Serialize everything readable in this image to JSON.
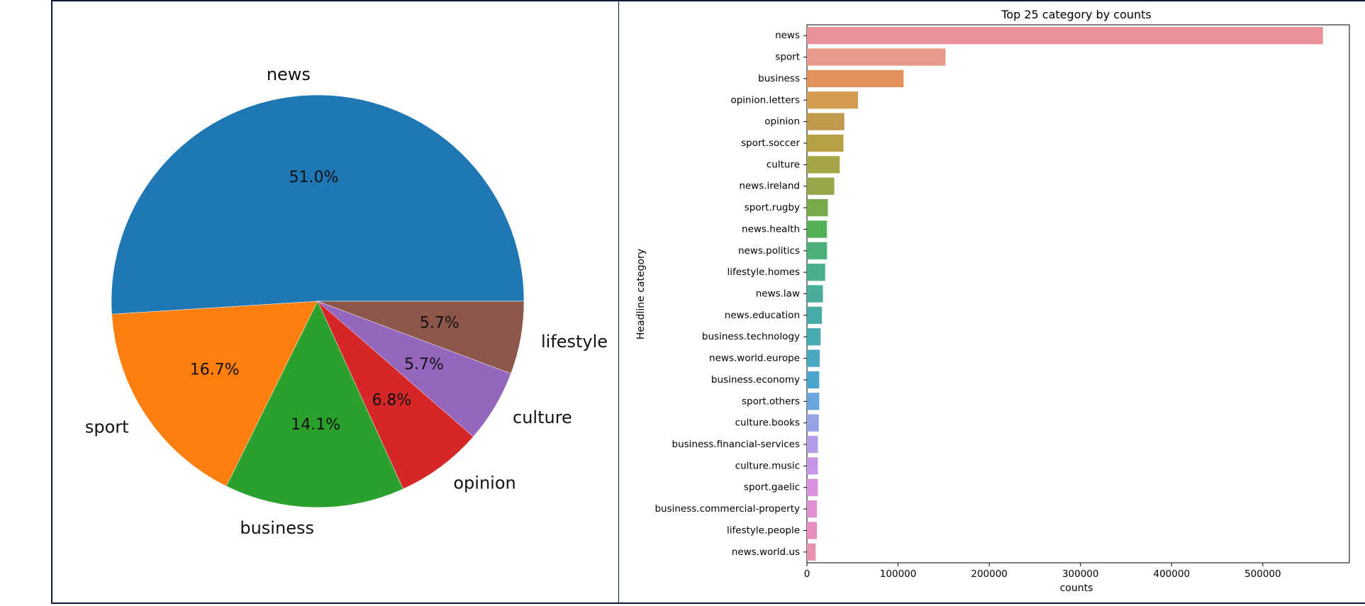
{
  "chart_data": [
    {
      "type": "pie",
      "title": "",
      "slices": [
        {
          "label": "news",
          "value": 51.0,
          "pct_text": "51.0%",
          "color": "#1f77b4"
        },
        {
          "label": "sport",
          "value": 16.7,
          "pct_text": "16.7%",
          "color": "#ff7f0e"
        },
        {
          "label": "business",
          "value": 14.1,
          "pct_text": "14.1%",
          "color": "#2ca02c"
        },
        {
          "label": "opinion",
          "value": 6.8,
          "pct_text": "6.8%",
          "color": "#d62728"
        },
        {
          "label": "culture",
          "value": 5.7,
          "pct_text": "5.7%",
          "color": "#9467bd"
        },
        {
          "label": "lifestyle",
          "value": 5.7,
          "pct_text": "5.7%",
          "color": "#8c564b"
        }
      ]
    },
    {
      "type": "bar",
      "orientation": "horizontal",
      "title": "Top 25 category by counts",
      "xlabel": "counts",
      "ylabel": "Headline category",
      "xlim": [
        0,
        595000
      ],
      "xticks": [
        0,
        100000,
        200000,
        300000,
        400000,
        500000
      ],
      "xtick_labels": [
        "0",
        "100000",
        "200000",
        "300000",
        "400000",
        "500000"
      ],
      "grid": false,
      "categories": [
        "news",
        "sport",
        "business",
        "opinion.letters",
        "opinion",
        "sport.soccer",
        "culture",
        "news.ireland",
        "sport.rugby",
        "news.health",
        "news.politics",
        "lifestyle.homes",
        "news.law",
        "news.education",
        "business.technology",
        "news.world.europe",
        "business.economy",
        "sport.others",
        "culture.books",
        "business.financial-services",
        "culture.music",
        "sport.gaelic",
        "business.commercial-property",
        "lifestyle.people",
        "news.world.us"
      ],
      "values": [
        566000,
        152000,
        106000,
        56000,
        41000,
        40000,
        36000,
        30000,
        23000,
        22000,
        22000,
        20000,
        17500,
        16500,
        15000,
        14000,
        13500,
        13500,
        13000,
        12000,
        12000,
        12000,
        11000,
        11000,
        9500
      ],
      "colors": [
        "#e8919a",
        "#e89a8a",
        "#e0925a",
        "#d39c4e",
        "#c09a4a",
        "#b6a045",
        "#a7a646",
        "#96a84a",
        "#78ac4a",
        "#52b057",
        "#4cb07a",
        "#4bae8e",
        "#4aad9b",
        "#49aba7",
        "#49aab2",
        "#4aa8bf",
        "#4aa6cc",
        "#6aa5dd",
        "#96a4e6",
        "#b29ce8",
        "#c796e6",
        "#d892e0",
        "#e28ed2",
        "#e68ec2",
        "#e892ad"
      ]
    }
  ]
}
